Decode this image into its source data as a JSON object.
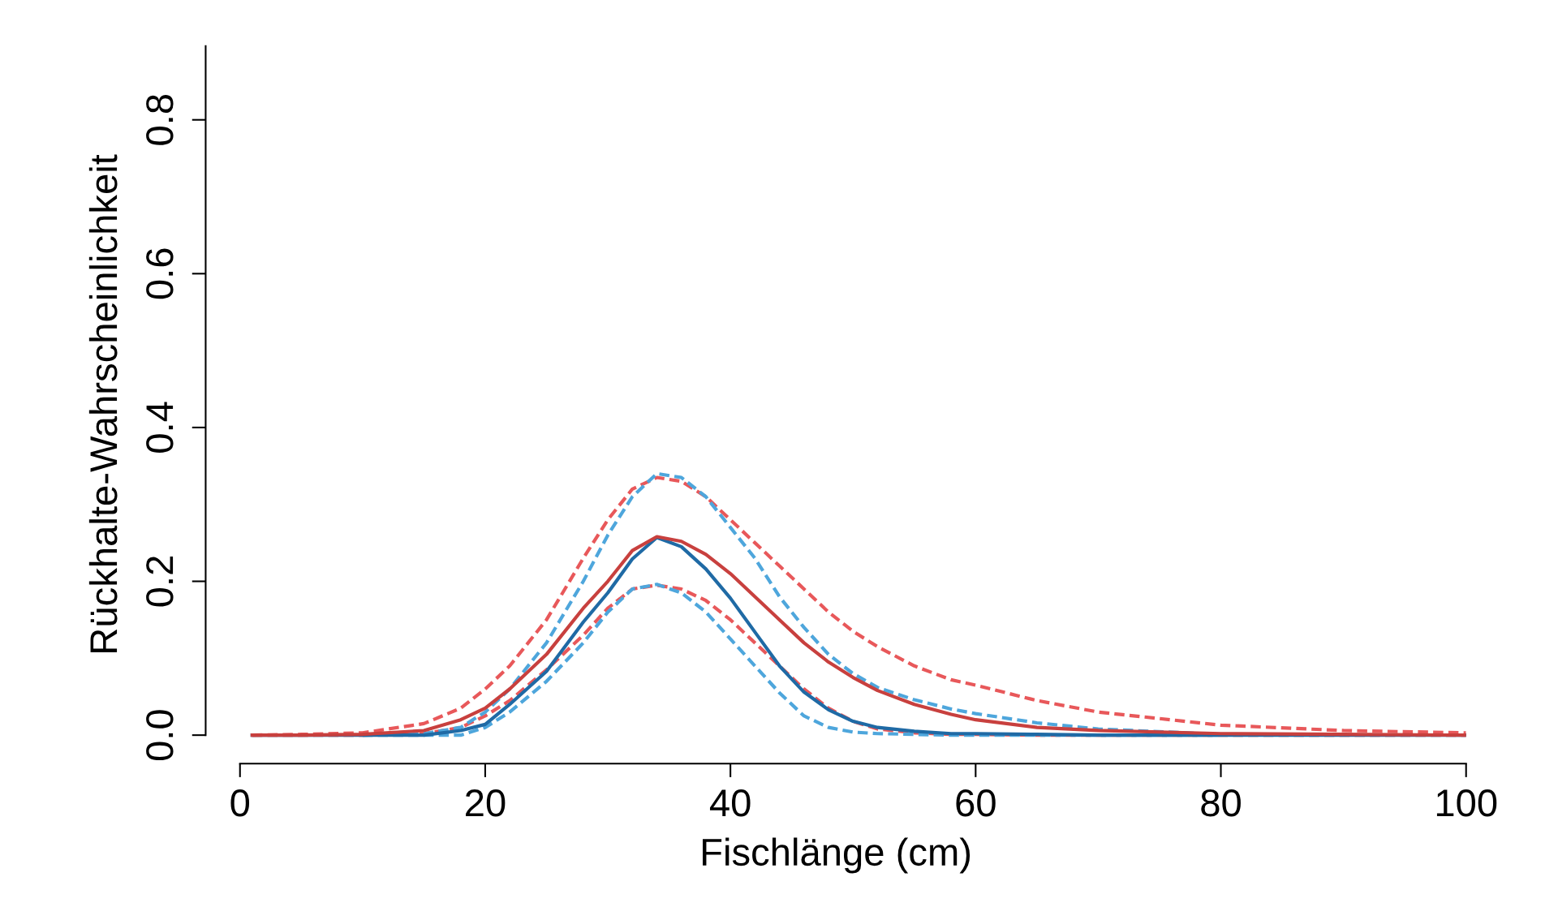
{
  "chart_data": {
    "type": "line",
    "xlabel": "Fischlänge (cm)",
    "ylabel": "Rückhalte-Wahrscheinlichkeit",
    "x": [
      1,
      5,
      10,
      15,
      18,
      20,
      22,
      25,
      28,
      30,
      32,
      34,
      36,
      38,
      40,
      42,
      44,
      46,
      48,
      50,
      52,
      55,
      58,
      60,
      65,
      70,
      80,
      90,
      100
    ],
    "series": [
      {
        "color": "#e8585a",
        "line_style": "dashed",
        "values": [
          0,
          0.001,
          0.003,
          0.015,
          0.035,
          0.06,
          0.09,
          0.15,
          0.23,
          0.28,
          0.32,
          0.335,
          0.33,
          0.31,
          0.28,
          0.25,
          0.22,
          0.19,
          0.16,
          0.135,
          0.115,
          0.09,
          0.072,
          0.065,
          0.045,
          0.03,
          0.013,
          0.006,
          0.003
        ]
      },
      {
        "color": "#e8585a",
        "line_style": "dashed",
        "values": [
          0,
          0,
          0,
          0.002,
          0.01,
          0.025,
          0.045,
          0.085,
          0.13,
          0.165,
          0.19,
          0.195,
          0.19,
          0.175,
          0.15,
          0.12,
          0.09,
          0.06,
          0.035,
          0.018,
          0.008,
          0.003,
          0.001,
          0.001,
          0,
          0,
          0,
          0,
          0
        ]
      },
      {
        "color": "#4ea6dc",
        "line_style": "dashed",
        "values": [
          null,
          null,
          0,
          0.002,
          0.01,
          0.03,
          0.06,
          0.12,
          0.2,
          0.26,
          0.31,
          0.34,
          0.335,
          0.31,
          0.27,
          0.23,
          0.18,
          0.14,
          0.105,
          0.08,
          0.062,
          0.046,
          0.034,
          0.028,
          0.016,
          0.008,
          0.001,
          null,
          null
        ]
      },
      {
        "color": "#4ea6dc",
        "line_style": "dashed",
        "values": [
          null,
          null,
          0,
          0,
          0,
          0.01,
          0.03,
          0.07,
          0.12,
          0.16,
          0.19,
          0.196,
          0.185,
          0.16,
          0.125,
          0.09,
          0.055,
          0.025,
          0.01,
          0.004,
          0.002,
          0.001,
          0,
          0,
          0,
          0,
          0,
          null,
          null
        ]
      },
      {
        "color": "#1f6aa5",
        "line_style": "solid",
        "values": [
          0,
          0,
          0,
          0,
          0.006,
          0.014,
          0.04,
          0.083,
          0.147,
          0.185,
          0.229,
          0.257,
          0.245,
          0.216,
          0.178,
          0.134,
          0.09,
          0.056,
          0.033,
          0.018,
          0.01,
          0.005,
          0.002,
          0.002,
          0.001,
          0,
          0,
          0,
          0
        ]
      },
      {
        "color": "#c8403e",
        "line_style": "solid",
        "values": [
          0,
          0,
          0.001,
          0.006,
          0.02,
          0.035,
          0.06,
          0.105,
          0.165,
          0.2,
          0.24,
          0.258,
          0.252,
          0.235,
          0.21,
          0.18,
          0.15,
          0.12,
          0.095,
          0.075,
          0.058,
          0.04,
          0.027,
          0.02,
          0.01,
          0.006,
          0.002,
          0.001,
          0
        ]
      }
    ],
    "xlim": [
      -2.8,
      100
    ],
    "ylim": [
      -0.037,
      0.896
    ],
    "xticks": [
      0,
      20,
      40,
      60,
      80,
      100
    ],
    "yticks": [
      {
        "value": 0,
        "label": "0.0"
      },
      0.2,
      0.4,
      0.6,
      0.8
    ],
    "grid": false
  }
}
